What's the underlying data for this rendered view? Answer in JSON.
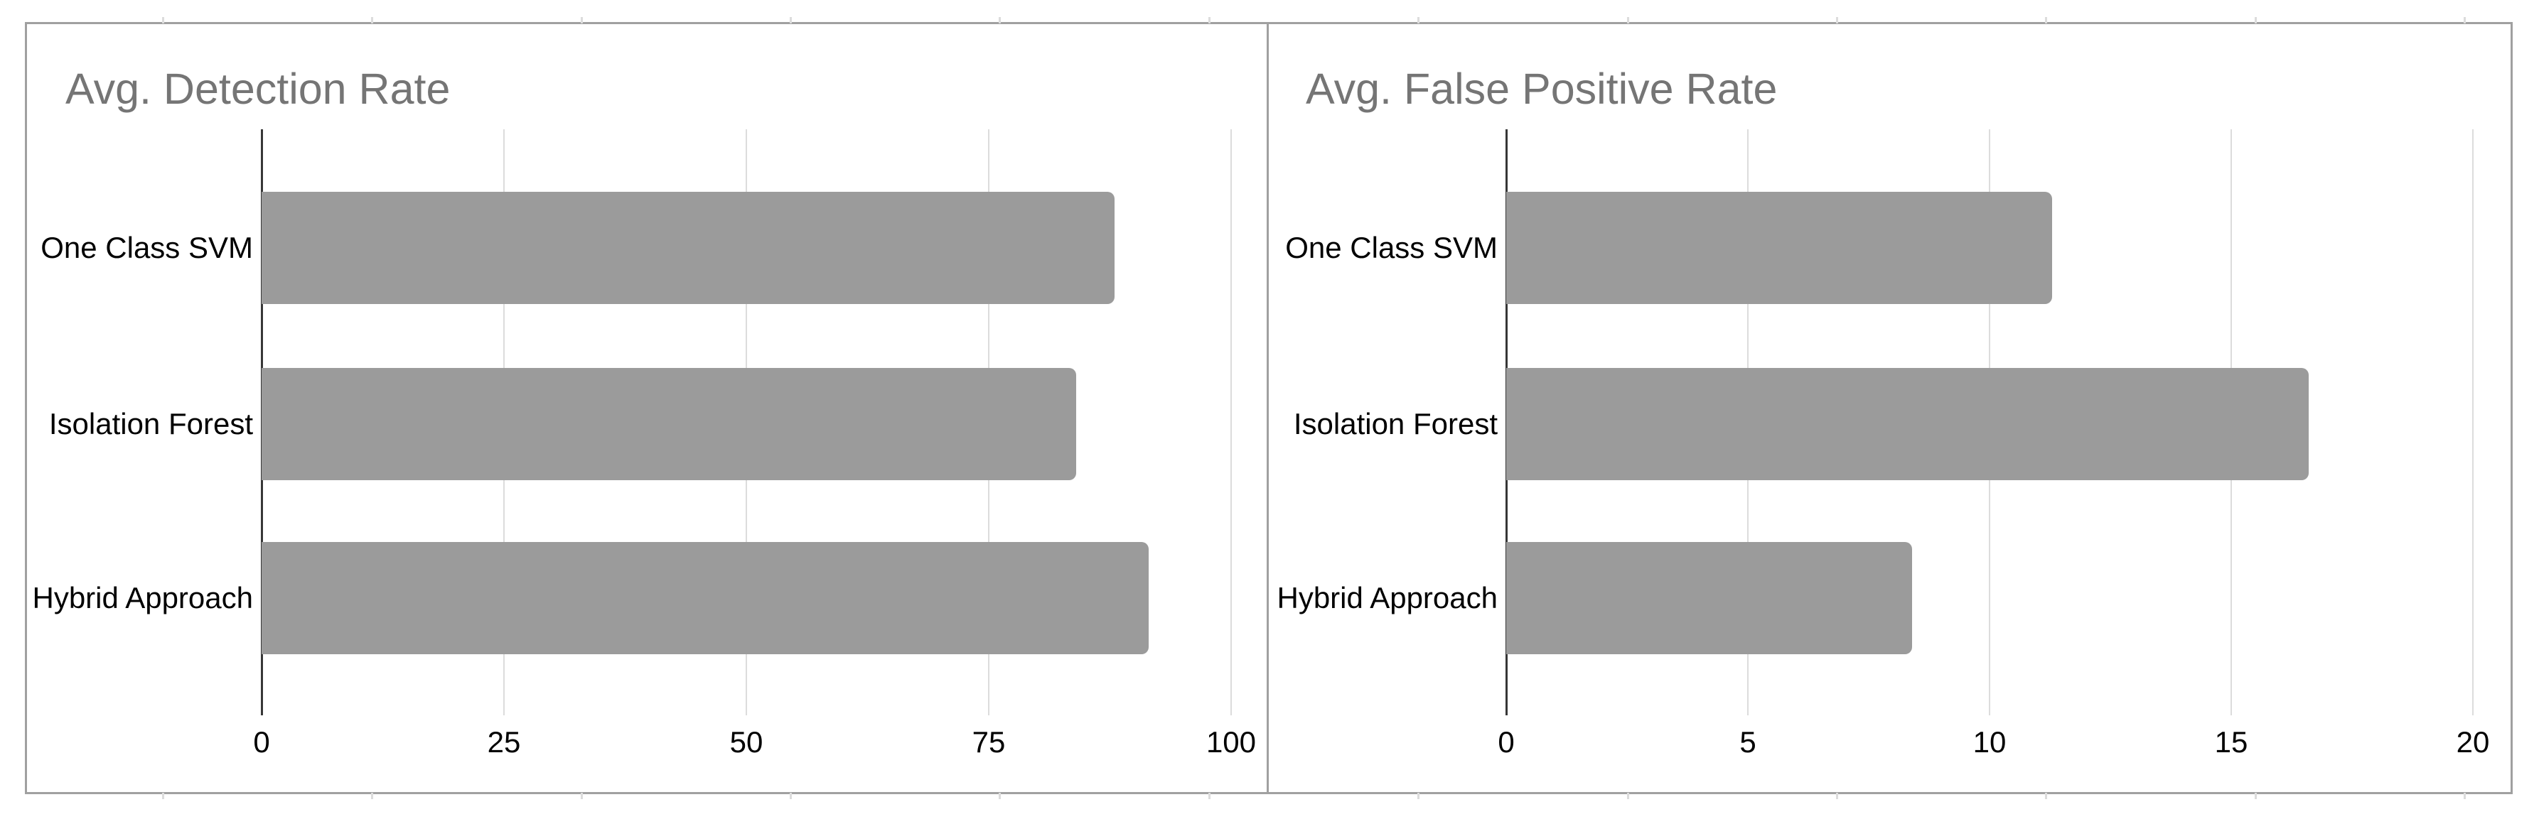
{
  "chart_data": [
    {
      "type": "bar",
      "orientation": "horizontal",
      "title": "Avg. Detection Rate",
      "categories": [
        "One Class SVM",
        "Isolation Forest",
        "Hybrid Approach"
      ],
      "values": [
        88,
        84,
        91.5
      ],
      "xlim": [
        0,
        100
      ],
      "xticks": [
        "0",
        "25",
        "50",
        "75",
        "100"
      ],
      "ylabel": "",
      "xlabel": "",
      "legend": "none",
      "grid": "vertical gridlines on"
    },
    {
      "type": "bar",
      "orientation": "horizontal",
      "title": "Avg. False Positive Rate",
      "categories": [
        "One Class SVM",
        "Isolation Forest",
        "Hybrid Approach"
      ],
      "values": [
        11.3,
        16.6,
        8.4
      ],
      "xlim": [
        0,
        20
      ],
      "xticks": [
        "0",
        "5",
        "10",
        "15",
        "20"
      ],
      "ylabel": "",
      "xlabel": "",
      "legend": "none",
      "grid": "vertical gridlines on"
    }
  ],
  "style": {
    "background": "#ffffff",
    "panel_border_color": "#a0a0a0",
    "title_color": "#757575",
    "label_color": "#000000",
    "gridline_color": "#dcdcdc",
    "axis_line_color": "#373737",
    "bar_color": "#9b9b9b",
    "outer_tick_color": "#dcdcdc"
  }
}
